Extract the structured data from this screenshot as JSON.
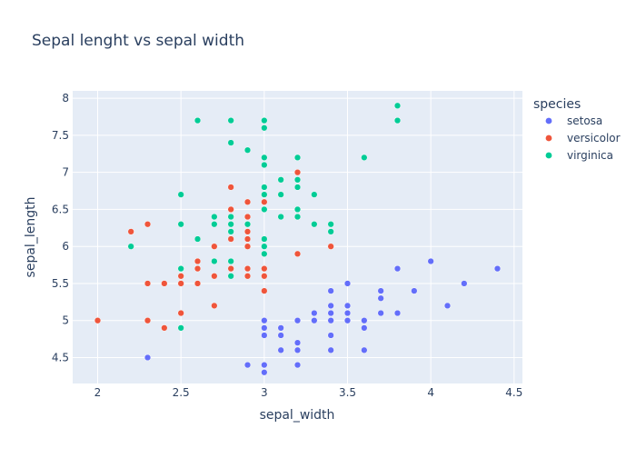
{
  "chart_data": {
    "type": "scatter",
    "title": "Sepal lenght vs sepal width",
    "xlabel": "sepal_width",
    "ylabel": "sepal_length",
    "xlim": [
      1.85,
      4.55
    ],
    "ylim": [
      4.15,
      8.1
    ],
    "x_ticks": [
      2,
      2.5,
      3,
      3.5,
      4,
      4.5
    ],
    "y_ticks": [
      4.5,
      5,
      5.5,
      6,
      6.5,
      7,
      7.5,
      8
    ],
    "grid": true,
    "legend_title": "species",
    "legend_position": "right",
    "colors": {
      "plot_bg": "#E5ECF6",
      "text": "#2a3f5f",
      "grid": "#ffffff"
    },
    "series": [
      {
        "name": "setosa",
        "color": "#636EFA",
        "points": [
          [
            3.5,
            5.1
          ],
          [
            3.0,
            4.9
          ],
          [
            3.2,
            4.7
          ],
          [
            3.1,
            4.6
          ],
          [
            3.6,
            5.0
          ],
          [
            3.9,
            5.4
          ],
          [
            3.4,
            4.6
          ],
          [
            3.4,
            5.0
          ],
          [
            2.9,
            4.4
          ],
          [
            3.1,
            4.9
          ],
          [
            3.7,
            5.4
          ],
          [
            3.4,
            4.8
          ],
          [
            3.0,
            4.8
          ],
          [
            3.0,
            4.3
          ],
          [
            4.0,
            5.8
          ],
          [
            4.4,
            5.7
          ],
          [
            3.9,
            5.4
          ],
          [
            3.5,
            5.1
          ],
          [
            3.8,
            5.7
          ],
          [
            3.8,
            5.1
          ],
          [
            3.4,
            5.4
          ],
          [
            3.7,
            5.1
          ],
          [
            3.6,
            4.6
          ],
          [
            3.3,
            5.1
          ],
          [
            3.4,
            4.8
          ],
          [
            3.0,
            5.0
          ],
          [
            3.4,
            5.0
          ],
          [
            3.5,
            5.2
          ],
          [
            3.4,
            5.2
          ],
          [
            3.2,
            4.7
          ],
          [
            3.1,
            4.8
          ],
          [
            3.4,
            5.4
          ],
          [
            4.1,
            5.2
          ],
          [
            4.2,
            5.5
          ],
          [
            3.1,
            4.9
          ],
          [
            3.2,
            5.0
          ],
          [
            3.5,
            5.5
          ],
          [
            3.6,
            4.9
          ],
          [
            3.0,
            4.4
          ],
          [
            3.4,
            5.1
          ],
          [
            3.5,
            5.0
          ],
          [
            2.3,
            4.5
          ],
          [
            3.2,
            4.4
          ],
          [
            3.5,
            5.0
          ],
          [
            3.8,
            5.1
          ],
          [
            3.0,
            4.8
          ],
          [
            3.8,
            5.1
          ],
          [
            3.2,
            4.6
          ],
          [
            3.7,
            5.3
          ],
          [
            3.3,
            5.0
          ]
        ]
      },
      {
        "name": "versicolor",
        "color": "#EF553B",
        "points": [
          [
            3.2,
            7.0
          ],
          [
            3.2,
            6.4
          ],
          [
            3.1,
            6.9
          ],
          [
            2.3,
            5.5
          ],
          [
            2.8,
            6.5
          ],
          [
            2.8,
            5.7
          ],
          [
            3.3,
            6.3
          ],
          [
            2.4,
            4.9
          ],
          [
            2.9,
            6.6
          ],
          [
            2.7,
            5.2
          ],
          [
            2.0,
            5.0
          ],
          [
            3.0,
            5.9
          ],
          [
            2.2,
            6.0
          ],
          [
            2.9,
            6.1
          ],
          [
            2.9,
            5.6
          ],
          [
            3.1,
            6.7
          ],
          [
            3.0,
            5.6
          ],
          [
            2.7,
            5.8
          ],
          [
            2.2,
            6.2
          ],
          [
            2.5,
            5.6
          ],
          [
            3.2,
            5.9
          ],
          [
            2.8,
            6.1
          ],
          [
            2.5,
            6.3
          ],
          [
            2.8,
            6.1
          ],
          [
            2.9,
            6.4
          ],
          [
            3.0,
            6.6
          ],
          [
            2.8,
            6.8
          ],
          [
            3.0,
            6.7
          ],
          [
            2.9,
            6.0
          ],
          [
            2.6,
            5.7
          ],
          [
            2.4,
            5.5
          ],
          [
            2.4,
            5.5
          ],
          [
            2.7,
            5.8
          ],
          [
            2.7,
            6.0
          ],
          [
            3.0,
            5.4
          ],
          [
            3.4,
            6.0
          ],
          [
            3.1,
            6.7
          ],
          [
            2.3,
            6.3
          ],
          [
            3.0,
            5.6
          ],
          [
            2.5,
            5.5
          ],
          [
            2.6,
            5.5
          ],
          [
            3.0,
            6.1
          ],
          [
            2.6,
            5.8
          ],
          [
            2.3,
            5.0
          ],
          [
            2.7,
            5.6
          ],
          [
            3.0,
            5.7
          ],
          [
            2.9,
            5.7
          ],
          [
            2.9,
            6.2
          ],
          [
            2.5,
            5.1
          ],
          [
            2.8,
            5.7
          ]
        ]
      },
      {
        "name": "virginica",
        "color": "#00CC96",
        "points": [
          [
            3.3,
            6.3
          ],
          [
            2.7,
            5.8
          ],
          [
            3.0,
            7.1
          ],
          [
            2.9,
            6.3
          ],
          [
            3.0,
            6.5
          ],
          [
            3.0,
            7.6
          ],
          [
            2.5,
            4.9
          ],
          [
            2.9,
            7.3
          ],
          [
            2.5,
            6.7
          ],
          [
            3.6,
            7.2
          ],
          [
            3.2,
            6.5
          ],
          [
            2.7,
            6.4
          ],
          [
            3.0,
            6.8
          ],
          [
            2.5,
            5.7
          ],
          [
            2.8,
            5.8
          ],
          [
            3.2,
            6.4
          ],
          [
            3.0,
            6.5
          ],
          [
            3.8,
            7.7
          ],
          [
            2.6,
            7.7
          ],
          [
            2.2,
            6.0
          ],
          [
            3.2,
            6.9
          ],
          [
            2.8,
            5.6
          ],
          [
            2.8,
            7.7
          ],
          [
            2.7,
            6.3
          ],
          [
            3.3,
            6.7
          ],
          [
            3.2,
            7.2
          ],
          [
            2.8,
            6.2
          ],
          [
            3.0,
            6.1
          ],
          [
            2.8,
            6.4
          ],
          [
            3.0,
            7.2
          ],
          [
            2.8,
            7.4
          ],
          [
            3.8,
            7.9
          ],
          [
            2.8,
            6.4
          ],
          [
            2.8,
            6.3
          ],
          [
            2.6,
            6.1
          ],
          [
            3.0,
            7.7
          ],
          [
            3.4,
            6.3
          ],
          [
            3.1,
            6.4
          ],
          [
            3.0,
            6.0
          ],
          [
            3.1,
            6.9
          ],
          [
            3.1,
            6.7
          ],
          [
            3.1,
            6.9
          ],
          [
            2.7,
            5.8
          ],
          [
            3.2,
            6.8
          ],
          [
            3.3,
            6.7
          ],
          [
            3.0,
            6.7
          ],
          [
            2.5,
            6.3
          ],
          [
            3.0,
            6.5
          ],
          [
            3.4,
            6.2
          ],
          [
            3.0,
            5.9
          ]
        ]
      }
    ]
  }
}
